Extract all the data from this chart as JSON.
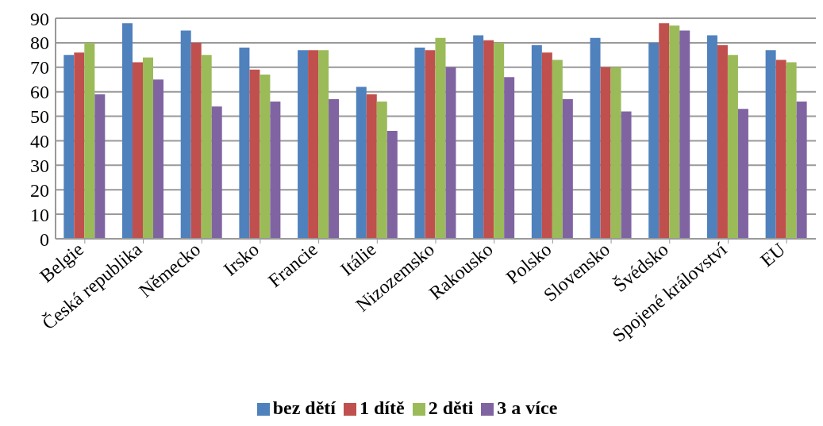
{
  "chart_data": {
    "type": "bar",
    "categories": [
      "Belgie",
      "Česká republika",
      "Německo",
      "Irsko",
      "Francie",
      "Itálie",
      "Nizozemsko",
      "Rakousko",
      "Polsko",
      "Slovensko",
      "Švédsko",
      "Spojené království",
      "EU"
    ],
    "series": [
      {
        "name": "bez dětí",
        "color": "#4f81bd",
        "values": [
          75,
          88,
          85,
          78,
          77,
          62,
          78,
          83,
          79,
          82,
          80,
          83,
          77
        ]
      },
      {
        "name": "1 dítě",
        "color": "#c0504d",
        "values": [
          76,
          72,
          80,
          69,
          77,
          59,
          77,
          81,
          76,
          70,
          88,
          79,
          73
        ]
      },
      {
        "name": "2 děti",
        "color": "#9bbb59",
        "values": [
          80,
          74,
          75,
          67,
          77,
          56,
          82,
          80,
          73,
          70,
          87,
          75,
          72
        ]
      },
      {
        "name": "3 a více",
        "color": "#8064a2",
        "values": [
          59,
          65,
          54,
          56,
          57,
          44,
          70,
          66,
          57,
          52,
          85,
          53,
          56
        ]
      }
    ],
    "ylim": [
      0,
      90
    ],
    "yticks": [
      0,
      10,
      20,
      30,
      40,
      50,
      60,
      70,
      80,
      90
    ],
    "grid": "y",
    "legend": "bottom"
  }
}
